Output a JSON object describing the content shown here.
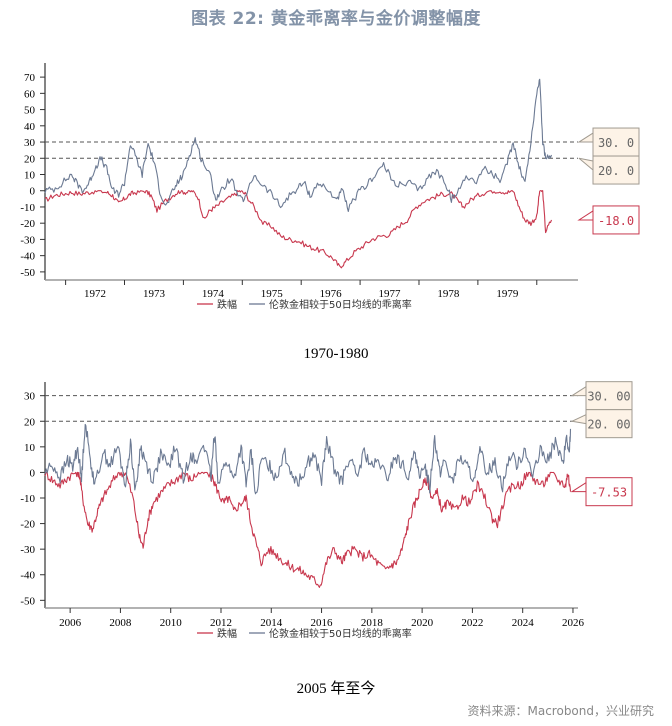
{
  "title": "图表 22: 黄金乖离率与金价调整幅度",
  "source": "资料来源：Macrobond，兴业研究",
  "colors": {
    "drawdown": "#c8384e",
    "deviation": "#6c7a93",
    "title": "#8393a8",
    "threshold_box_bg": "#fdf3e7",
    "threshold_box_border": "#a09a90"
  },
  "chart_data": [
    {
      "type": "line",
      "subtitle": "1970-1980",
      "xlabel": "",
      "ylabel": "",
      "xlim": [
        1971.65,
        1980.7
      ],
      "ylim": [
        -55,
        75
      ],
      "yticks": [
        70,
        60,
        50,
        40,
        30,
        20,
        10,
        0,
        -10,
        -20,
        -30,
        -40,
        -50
      ],
      "xtick_labels": [
        "1972",
        "1973",
        "1974",
        "1975",
        "1976",
        "1977",
        "1978",
        "1979"
      ],
      "xtick_label_positions": [
        1972.5,
        1973.5,
        1974.5,
        1975.5,
        1976.5,
        1977.5,
        1978.5,
        1979.5
      ],
      "xtick_marks": [
        1972,
        1973,
        1974,
        1975,
        1976,
        1977,
        1978,
        1979,
        1980
      ],
      "reference_lines": [
        30,
        20
      ],
      "annotations": [
        {
          "label": "30. 0",
          "value": 30,
          "kind": "threshold"
        },
        {
          "label": "20. 0",
          "value": 20,
          "kind": "threshold"
        },
        {
          "label": "-18.0",
          "value": -18,
          "kind": "last-drawdown"
        }
      ],
      "legend": {
        "placement": "bottom",
        "entries": [
          "跌幅",
          "伦敦金相较于50日均线的乖离率"
        ]
      },
      "series": [
        {
          "name": "跌幅",
          "color": "#c8384e",
          "x": [
            1971.65,
            1971.8,
            1971.95,
            1972.1,
            1972.25,
            1972.4,
            1972.55,
            1972.7,
            1972.8,
            1972.9,
            1973.0,
            1973.1,
            1973.2,
            1973.35,
            1973.45,
            1973.55,
            1973.7,
            1973.85,
            1973.95,
            1974.05,
            1974.15,
            1974.25,
            1974.35,
            1974.45,
            1974.55,
            1974.7,
            1974.85,
            1974.95,
            1975.05,
            1975.2,
            1975.35,
            1975.5,
            1975.65,
            1975.8,
            1975.95,
            1976.1,
            1976.25,
            1976.4,
            1976.55,
            1976.65,
            1976.75,
            1976.9,
            1977.05,
            1977.2,
            1977.35,
            1977.5,
            1977.65,
            1977.8,
            1977.95,
            1978.1,
            1978.25,
            1978.4,
            1978.55,
            1978.65,
            1978.75,
            1978.9,
            1979.05,
            1979.2,
            1979.35,
            1979.5,
            1979.6,
            1979.7,
            1979.8,
            1979.9,
            1980.0,
            1980.05,
            1980.1,
            1980.15,
            1980.25
          ],
          "values": [
            -6,
            -3,
            -2,
            -1,
            -2,
            -1,
            0,
            -1,
            -3,
            -8,
            -5,
            -2,
            -1,
            0,
            -3,
            -12,
            -6,
            -2,
            0,
            -1,
            0,
            -4,
            -18,
            -12,
            -10,
            -6,
            -3,
            0,
            -2,
            -10,
            -20,
            -22,
            -28,
            -30,
            -31,
            -34,
            -36,
            -38,
            -42,
            -47,
            -44,
            -38,
            -34,
            -30,
            -28,
            -27,
            -22,
            -18,
            -10,
            -6,
            -4,
            -2,
            -2,
            -6,
            -10,
            -5,
            -2,
            0,
            0,
            -1,
            0,
            -10,
            -18,
            -20,
            -16,
            0,
            0,
            -25,
            -18
          ]
        },
        {
          "name": "伦敦金相较于50日均线的乖离率",
          "color": "#6c7a93",
          "x": [
            1971.65,
            1971.8,
            1971.95,
            1972.1,
            1972.2,
            1972.3,
            1972.4,
            1972.5,
            1972.6,
            1972.7,
            1972.8,
            1972.9,
            1973.0,
            1973.1,
            1973.2,
            1973.3,
            1973.4,
            1973.5,
            1973.6,
            1973.7,
            1973.8,
            1973.9,
            1974.0,
            1974.1,
            1974.2,
            1974.3,
            1974.45,
            1974.55,
            1974.65,
            1974.8,
            1974.95,
            1975.05,
            1975.2,
            1975.35,
            1975.5,
            1975.65,
            1975.8,
            1975.95,
            1976.05,
            1976.15,
            1976.3,
            1976.45,
            1976.6,
            1976.7,
            1976.8,
            1976.95,
            1977.1,
            1977.25,
            1977.4,
            1977.55,
            1977.7,
            1977.85,
            1978.0,
            1978.15,
            1978.3,
            1978.45,
            1978.55,
            1978.65,
            1978.8,
            1978.95,
            1979.1,
            1979.25,
            1979.4,
            1979.5,
            1979.6,
            1979.7,
            1979.8,
            1979.9,
            1980.0,
            1980.05,
            1980.1,
            1980.15,
            1980.25
          ],
          "values": [
            0,
            1,
            5,
            10,
            4,
            0,
            5,
            14,
            20,
            13,
            0,
            -2,
            5,
            29,
            20,
            10,
            29,
            18,
            0,
            -10,
            -2,
            5,
            10,
            22,
            32,
            20,
            10,
            -5,
            0,
            8,
            -5,
            -5,
            10,
            3,
            -2,
            -10,
            -3,
            2,
            5,
            -3,
            5,
            0,
            -5,
            0,
            -12,
            -2,
            3,
            10,
            16,
            6,
            3,
            5,
            0,
            8,
            12,
            5,
            -5,
            -2,
            10,
            5,
            14,
            10,
            6,
            18,
            30,
            15,
            5,
            30,
            60,
            70,
            30,
            20,
            22
          ]
        }
      ]
    },
    {
      "type": "line",
      "subtitle": "2005 年至今",
      "xlabel": "",
      "ylabel": "",
      "xlim": [
        2005.0,
        2026.2
      ],
      "ylim": [
        -53,
        33
      ],
      "yticks": [
        30,
        20,
        10,
        0,
        -10,
        -20,
        -30,
        -40,
        -50
      ],
      "xtick_labels": [
        "2006",
        "2008",
        "2010",
        "2012",
        "2014",
        "2016",
        "2018",
        "2020",
        "2022",
        "2024",
        "2026"
      ],
      "xtick_label_positions": [
        2006,
        2008,
        2010,
        2012,
        2014,
        2016,
        2018,
        2020,
        2022,
        2024,
        2026
      ],
      "xtick_marks": [
        2006,
        2008,
        2010,
        2012,
        2014,
        2016,
        2018,
        2020,
        2022,
        2024,
        2026
      ],
      "reference_lines": [
        30,
        20
      ],
      "annotations": [
        {
          "label": "30. 00",
          "value": 30,
          "kind": "threshold"
        },
        {
          "label": "20. 00",
          "value": 20,
          "kind": "threshold"
        },
        {
          "label": "-7.53",
          "value": -7.53,
          "kind": "last-drawdown"
        }
      ],
      "legend": {
        "placement": "bottom",
        "entries": [
          "跌幅",
          "伦敦金相较于50日均线的乖离率"
        ]
      },
      "series": [
        {
          "name": "跌幅",
          "color": "#c8384e",
          "x": [
            2005.0,
            2005.3,
            2005.6,
            2005.9,
            2006.2,
            2006.35,
            2006.5,
            2006.7,
            2006.9,
            2007.1,
            2007.3,
            2007.6,
            2007.9,
            2008.2,
            2008.5,
            2008.75,
            2008.9,
            2009.1,
            2009.3,
            2009.6,
            2009.9,
            2010.2,
            2010.5,
            2010.8,
            2011.1,
            2011.4,
            2011.7,
            2011.9,
            2012.1,
            2012.3,
            2012.5,
            2012.8,
            2013.0,
            2013.2,
            2013.4,
            2013.6,
            2013.9,
            2014.2,
            2014.5,
            2014.8,
            2015.1,
            2015.4,
            2015.7,
            2015.95,
            2016.2,
            2016.5,
            2016.8,
            2017.0,
            2017.3,
            2017.6,
            2017.9,
            2018.2,
            2018.5,
            2018.8,
            2019.0,
            2019.2,
            2019.4,
            2019.6,
            2019.8,
            2020.0,
            2020.2,
            2020.4,
            2020.6,
            2020.8,
            2021.0,
            2021.3,
            2021.6,
            2021.9,
            2022.2,
            2022.5,
            2022.8,
            2023.0,
            2023.3,
            2023.6,
            2023.9,
            2024.2,
            2024.5,
            2024.8,
            2025.1,
            2025.4,
            2025.7,
            2025.8,
            2025.9
          ],
          "values": [
            0,
            -3,
            -5,
            -2,
            0,
            0,
            -10,
            -20,
            -22,
            -15,
            -10,
            -5,
            0,
            0,
            -10,
            -25,
            -29,
            -18,
            -12,
            -8,
            -5,
            -3,
            0,
            -3,
            0,
            0,
            -3,
            -8,
            -12,
            -10,
            -15,
            -12,
            -10,
            -20,
            -28,
            -35,
            -30,
            -32,
            -35,
            -37,
            -38,
            -40,
            -42,
            -44,
            -35,
            -30,
            -35,
            -32,
            -30,
            -33,
            -32,
            -35,
            -38,
            -36,
            -35,
            -30,
            -22,
            -15,
            -10,
            -5,
            -3,
            -10,
            -8,
            -15,
            -12,
            -15,
            -10,
            -12,
            -5,
            -10,
            -18,
            -20,
            -10,
            -5,
            -5,
            0,
            -3,
            -5,
            0,
            -3,
            -5,
            0,
            -7.53
          ]
        },
        {
          "name": "伦敦金相较于50日均线的乖离率",
          "color": "#6c7a93",
          "x": [
            2005.0,
            2005.3,
            2005.6,
            2005.9,
            2006.1,
            2006.3,
            2006.45,
            2006.6,
            2006.8,
            2007.0,
            2007.3,
            2007.6,
            2007.9,
            2008.2,
            2008.4,
            2008.6,
            2008.8,
            2009.0,
            2009.3,
            2009.6,
            2009.9,
            2010.2,
            2010.5,
            2010.8,
            2011.0,
            2011.3,
            2011.6,
            2011.75,
            2011.9,
            2012.2,
            2012.5,
            2012.8,
            2013.0,
            2013.2,
            2013.4,
            2013.6,
            2013.9,
            2014.2,
            2014.5,
            2014.8,
            2015.1,
            2015.4,
            2015.7,
            2016.0,
            2016.2,
            2016.5,
            2016.8,
            2017.1,
            2017.4,
            2017.7,
            2018.0,
            2018.3,
            2018.6,
            2018.9,
            2019.2,
            2019.5,
            2019.7,
            2019.9,
            2020.1,
            2020.3,
            2020.5,
            2020.7,
            2020.9,
            2021.2,
            2021.5,
            2021.8,
            2022.1,
            2022.3,
            2022.6,
            2022.9,
            2023.2,
            2023.5,
            2023.8,
            2024.1,
            2024.4,
            2024.7,
            2025.0,
            2025.3,
            2025.6,
            2025.75,
            2025.85,
            2025.9
          ],
          "values": [
            0,
            3,
            -2,
            5,
            2,
            10,
            -3,
            20,
            5,
            -5,
            8,
            3,
            10,
            -5,
            12,
            -8,
            10,
            4,
            -3,
            7,
            2,
            10,
            -3,
            8,
            3,
            12,
            -2,
            16,
            -5,
            5,
            -3,
            10,
            -5,
            8,
            -10,
            5,
            3,
            -2,
            8,
            0,
            -4,
            3,
            7,
            -3,
            12,
            2,
            -4,
            6,
            -2,
            8,
            2,
            4,
            -3,
            6,
            3,
            -2,
            10,
            -4,
            4,
            -6,
            14,
            0,
            5,
            -4,
            6,
            2,
            -3,
            8,
            0,
            4,
            -5,
            7,
            3,
            10,
            -2,
            8,
            5,
            12,
            3,
            14,
            6,
            17
          ]
        }
      ]
    }
  ]
}
